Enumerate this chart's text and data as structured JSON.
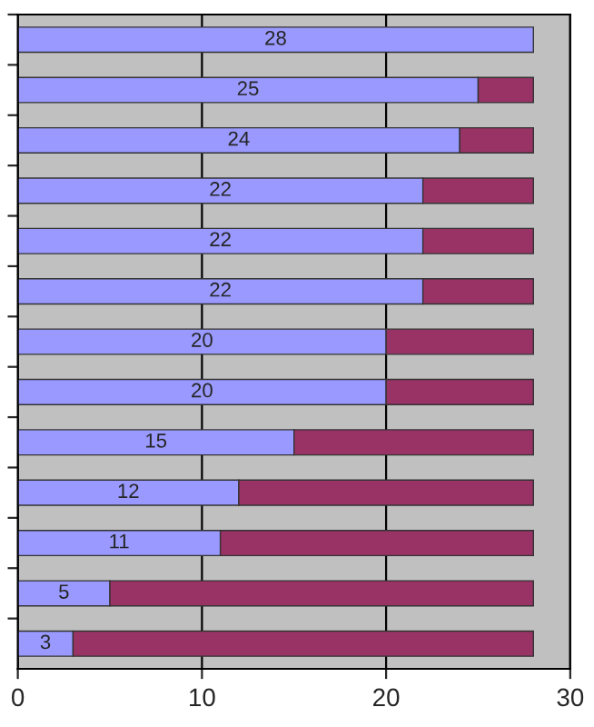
{
  "chart_data": {
    "type": "bar",
    "orientation": "horizontal",
    "stacked": true,
    "categories": [
      null,
      null,
      null,
      null,
      null,
      null,
      null,
      null,
      null,
      null,
      null,
      null,
      null
    ],
    "series": [
      {
        "color": "#9999ff",
        "values": [
          28,
          25,
          24,
          22,
          22,
          22,
          20,
          20,
          15,
          12,
          11,
          5,
          3
        ],
        "value_labels": [
          "28",
          "25",
          "24",
          "22",
          "22",
          "22",
          "20",
          "20",
          "15",
          "12",
          "11",
          "5",
          "3"
        ]
      },
      {
        "color": "#993366",
        "values": [
          null,
          3,
          4,
          6,
          6,
          6,
          8,
          8,
          13,
          16,
          17,
          23,
          25
        ]
      }
    ],
    "xlim": [
      0,
      30
    ],
    "xticks": [
      0,
      10,
      20,
      30
    ],
    "grid": "x",
    "tick_labels": "x"
  }
}
